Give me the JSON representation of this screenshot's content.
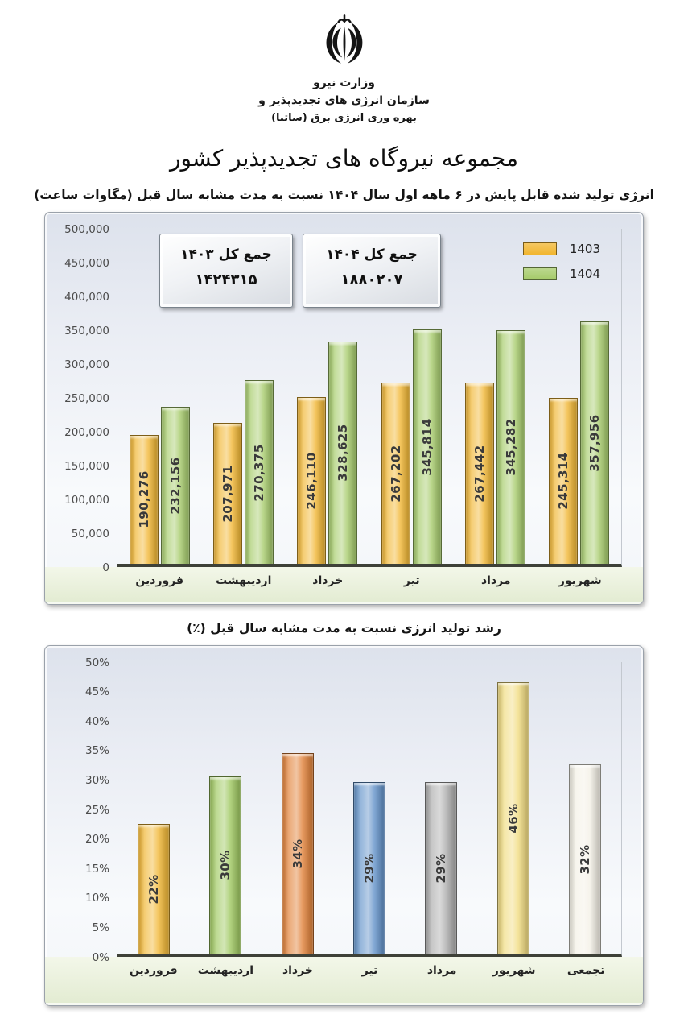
{
  "header": {
    "ministry": "وزارت نیرو",
    "organization_line1": "سازمان انرژی های تجدیدپذیر و",
    "organization_line2": "بهره وری انرژی برق (ساتبا)",
    "page_title": "مجموعه نیروگاه های تجدیدپذیر کشور"
  },
  "chart_data": [
    {
      "type": "bar",
      "title": "انرژی تولید شده قابل پایش در ۶ ماهه اول سال ۱۴۰۴ نسبت به مدت مشابه سال قبل (مگاوات ساعت)",
      "categories": [
        "فروردین",
        "اردیبهشت",
        "خرداد",
        "تیر",
        "مرداد",
        "شهریور"
      ],
      "series": [
        {
          "name": "1403",
          "color": "#F1B52F",
          "values": [
            190276,
            207971,
            246110,
            267202,
            267442,
            245314
          ]
        },
        {
          "name": "1404",
          "color": "#A5CB69",
          "values": [
            232156,
            270375,
            328625,
            345814,
            345282,
            357956
          ]
        }
      ],
      "ylim": [
        0,
        500000
      ],
      "ytick_step": 50000,
      "grid": false,
      "legend_position": "top-right",
      "totals": [
        {
          "label": "جمع کل ۱۴۰۳",
          "value": "۱۴۲۴۳۱۵"
        },
        {
          "label": "جمع کل ۱۴۰۴",
          "value": "۱۸۸۰۲۰۷"
        }
      ]
    },
    {
      "type": "bar",
      "title": "رشد تولید انرژی نسبت به مدت مشابه سال قبل (٪)",
      "categories": [
        "فروردین",
        "اردیبهشت",
        "خرداد",
        "تیر",
        "مرداد",
        "شهریور",
        "تجمعی"
      ],
      "values": [
        22,
        30,
        34,
        29,
        29,
        46,
        32
      ],
      "colors": [
        "#F1B52F",
        "#9CC75C",
        "#E07E33",
        "#5F90C8",
        "#ACACAC",
        "#F1DB7D",
        "#F3F0E5"
      ],
      "ylim": [
        0,
        50
      ],
      "ytick_step": 5,
      "grid": false
    }
  ]
}
